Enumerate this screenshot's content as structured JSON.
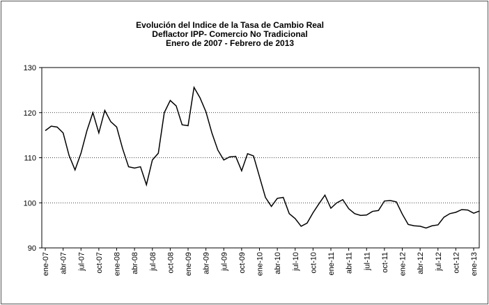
{
  "chart_data": {
    "type": "line",
    "title": [
      "Evolución del Indice de la Tasa de Cambio Real",
      "Deflactor IPP- Comercio No Tradicional",
      "Enero de 2007 - Febrero de 2013"
    ],
    "categories": [
      "ene-07",
      null,
      null,
      "abr-07",
      null,
      null,
      "jul-07",
      null,
      null,
      "oct-07",
      null,
      null,
      "ene-08",
      null,
      null,
      "abr-08",
      null,
      null,
      "jul-08",
      null,
      null,
      "oct-08",
      null,
      null,
      "ene-09",
      null,
      null,
      "abr-09",
      null,
      null,
      "jul-09",
      null,
      null,
      "oct-09",
      null,
      null,
      "ene-10",
      null,
      null,
      "abr-10",
      null,
      null,
      "jul-10",
      null,
      null,
      "oct-10",
      null,
      null,
      "ene-11",
      null,
      null,
      "abr-11",
      null,
      null,
      "jul-11",
      null,
      null,
      "oct-11",
      null,
      null,
      "ene-12",
      null,
      null,
      "abr-12",
      null,
      null,
      "jul-12",
      null,
      null,
      "oct-12",
      null,
      null,
      "ene-13",
      null
    ],
    "values": [
      116,
      117,
      116.8,
      115.5,
      110.5,
      107.3,
      111,
      116,
      120,
      115.5,
      120.5,
      118,
      116.8,
      112,
      108,
      107.7,
      108,
      104,
      109.5,
      111,
      120,
      122.7,
      121.5,
      117.3,
      117.1,
      125.6,
      123.3,
      120.2,
      115.5,
      111.7,
      109.5,
      110.2,
      110.3,
      107.1,
      110.9,
      110.4,
      105.8,
      101.2,
      99.2,
      101,
      101.2,
      97.6,
      96.5,
      94.8,
      95.5,
      97.8,
      99.8,
      101.7,
      98.8,
      100,
      100.7,
      98.7,
      97.6,
      97.2,
      97.3,
      98.1,
      98.3,
      100.4,
      100.5,
      100.2,
      97.5,
      95.2,
      94.9,
      94.8,
      94.4,
      94.9,
      95.1,
      96.8,
      97.6,
      97.9,
      98.5,
      98.4,
      97.7,
      98.2
    ],
    "color": "#000000",
    "ylim": [
      90,
      130
    ],
    "yticks": [
      90,
      100,
      110,
      120,
      130
    ],
    "grid": true
  }
}
